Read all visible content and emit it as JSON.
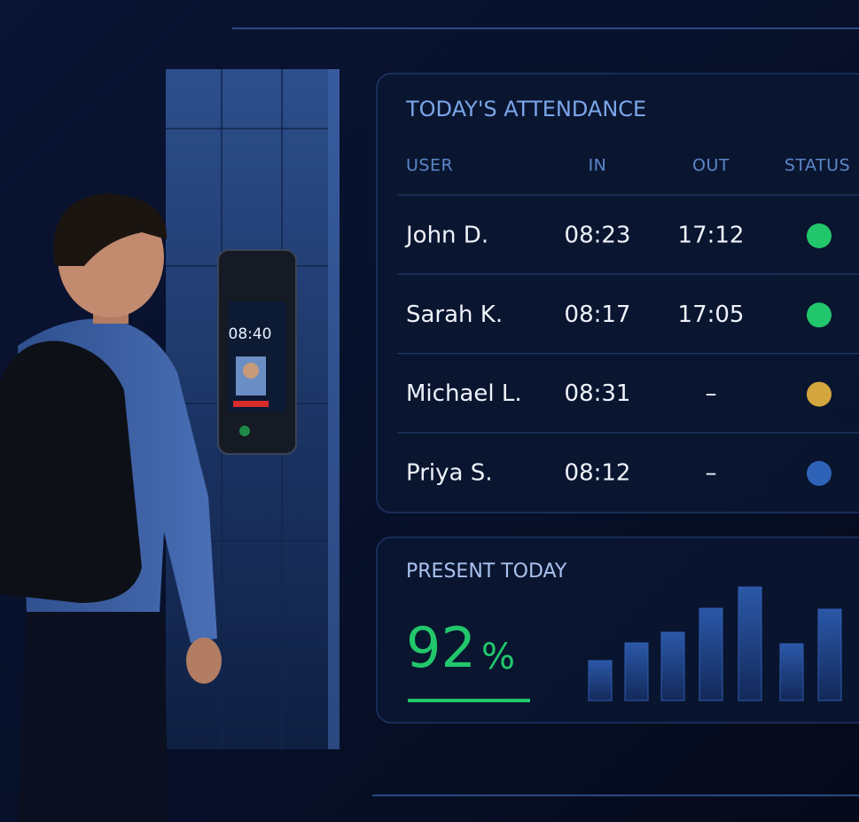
{
  "device": {
    "time": "08:40"
  },
  "attendance": {
    "title": "TODAY'S ATTENDANCE",
    "headers": [
      "USER",
      "IN",
      "OUT",
      "STATUS"
    ],
    "rows": [
      {
        "user": "John D.",
        "in": "08:23",
        "out": "17:12",
        "status_color": "#22c76c"
      },
      {
        "user": "Sarah K.",
        "in": "08:17",
        "out": "17:05",
        "status_color": "#22c76c"
      },
      {
        "user": "Michael L.",
        "in": "08:31",
        "out": "–",
        "status_color": "#d4a640"
      },
      {
        "user": "Priya S.",
        "in": "08:12",
        "out": "–",
        "status_color": "#2f63b8"
      }
    ]
  },
  "present_today": {
    "label": "PRESENT TODAY",
    "value": "92",
    "unit": "%",
    "bars": [
      45,
      65,
      77,
      104,
      128,
      64,
      103
    ]
  }
}
